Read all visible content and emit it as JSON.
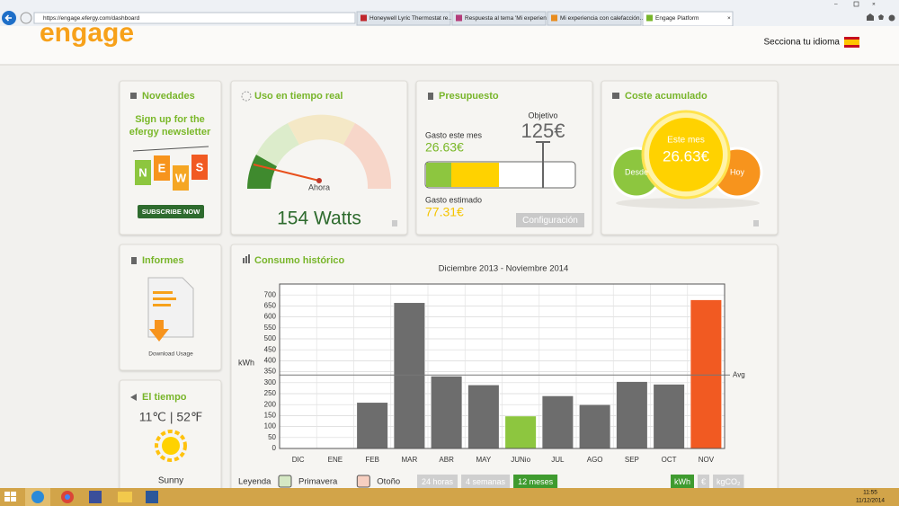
{
  "browser": {
    "url": "https://engage.efergy.com/dashboard",
    "tabs": [
      "Honeywell Lyric Thermostat re...",
      "Respuesta al tema 'Mi experien...",
      "Mi experiencia con calefacción...",
      "Engage Platform"
    ]
  },
  "header": {
    "logo": "engage",
    "language": "Secciona tu idioma"
  },
  "novedades": {
    "title": "Novedades",
    "newsletter": [
      "Sign up for the",
      "efergy newsletter"
    ],
    "tags": [
      "N",
      "E",
      "W",
      "S"
    ],
    "button": "SUBSCRIBE NOW"
  },
  "realtime": {
    "title": "Uso en tiempo real",
    "needle_label": "Ahora",
    "reading": "154 Watts"
  },
  "budget": {
    "title": "Presupuesto",
    "spent_label": "Gasto este mes",
    "spent": "26.63€",
    "target_label": "Objetivo",
    "target": "125€",
    "estimate_label": "Gasto estimado",
    "estimate": "77.31€",
    "button": "Configuración"
  },
  "cost": {
    "title": "Coste acumulado",
    "since": "Desde",
    "month_label": "Este mes",
    "month": "26.63€",
    "today": "Hoy"
  },
  "reports": {
    "title": "Informes",
    "link": "Download Usage"
  },
  "weather": {
    "title": "El tiempo",
    "temperature": "11℃ | 52℉",
    "condition": "Sunny"
  },
  "chart_data": {
    "type": "bar",
    "title": "Consumo histórico",
    "subtitle": "Diciembre 2013 - Noviembre 2014",
    "y_label": "kWh",
    "categories": [
      "DIC",
      "ENE",
      "FEB",
      "MAR",
      "ABR",
      "MAY",
      "JUNio",
      "JUL",
      "AGO",
      "SEP",
      "OCT",
      "NOV"
    ],
    "values": [
      0,
      0,
      210,
      665,
      330,
      290,
      148,
      240,
      200,
      305,
      293,
      678
    ],
    "colors": [
      "#6d6d6d",
      "#6d6d6d",
      "#6d6d6d",
      "#6d6d6d",
      "#6d6d6d",
      "#6d6d6d",
      "#8dc63f",
      "#6d6d6d",
      "#6d6d6d",
      "#6d6d6d",
      "#6d6d6d",
      "#f15a22"
    ],
    "ylim": [
      0,
      750
    ],
    "yticks": [
      0,
      50,
      100,
      150,
      200,
      250,
      300,
      350,
      400,
      450,
      500,
      550,
      600,
      650,
      700
    ],
    "grid": true,
    "reference_line": {
      "value": 335,
      "label": "Avg"
    },
    "legend_title": "Leyenda",
    "legend": [
      {
        "name": "Primavera",
        "color": "#d5e8c4"
      },
      {
        "name": "Otoño",
        "color": "#f7cfc0"
      }
    ],
    "range_buttons": [
      "24 horas",
      "4 semanas",
      "12 meses"
    ],
    "active_range": 2,
    "unit_buttons": [
      "kWh",
      "€",
      "kgCO₂"
    ],
    "active_unit": 0
  },
  "taskbar": {
    "time": "11:55",
    "date": "11/12/2014"
  }
}
